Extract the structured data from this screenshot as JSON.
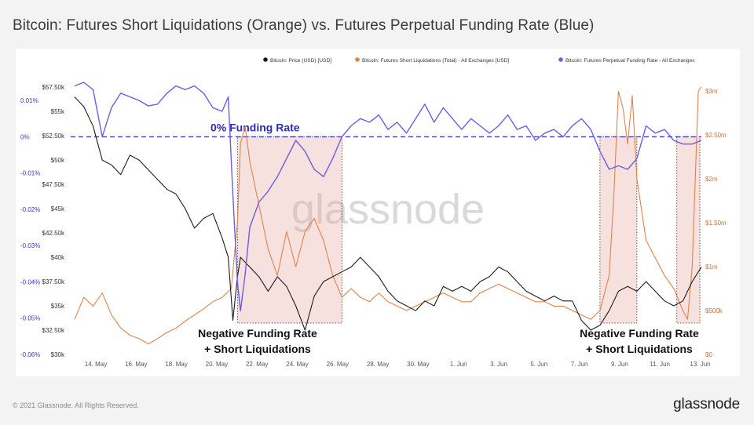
{
  "title": "Bitcoin: Futures Short Liquidations (Orange) vs. Futures Perpetual Funding Rate (Blue)",
  "footer": {
    "copyright": "© 2021 Glassnode. All Rights Reserved.",
    "brand": "glassnode"
  },
  "colors": {
    "price": "#1c1c1c",
    "liquidations": "#e0834b",
    "funding": "#6c5ce7",
    "zero_line": "#3b3fe0",
    "highlight": "#e8a8a0",
    "watermark": "#d9d9d9"
  },
  "chart_data": {
    "type": "line",
    "title": "Bitcoin: Futures Short Liquidations (Orange) vs. Futures Perpetual Funding Rate (Blue)",
    "x_range": [
      "2021-05-11",
      "2021-06-14"
    ],
    "x_ticks": [
      "14. May",
      "16. May",
      "18. May",
      "20. May",
      "22. May",
      "24. May",
      "26. May",
      "28. May",
      "30. May",
      "1. Jun",
      "3. Jun",
      "5. Jun",
      "7. Jun",
      "9. Jun",
      "11. Jun",
      "13. Jun"
    ],
    "y_left_price": {
      "ticks": [
        "$30k",
        "$32.50k",
        "$35k",
        "$37.50k",
        "$40k",
        "$42.50k",
        "$45k",
        "$47.50k",
        "$50k",
        "$52.50k",
        "$55k",
        "$57.50k"
      ],
      "range": [
        30000,
        58000
      ]
    },
    "y_left_funding": {
      "ticks": [
        "-0.06%",
        "-0.05%",
        "-0.04%",
        "-0.03%",
        "-0.02%",
        "-0.01%",
        "0%",
        "0.01%"
      ],
      "range": [
        -0.06,
        0.015
      ]
    },
    "y_right_liquidations": {
      "ticks": [
        "$0",
        "$500k",
        "$1m",
        "$1.50m",
        "$2m",
        "$2.50m",
        "$3m"
      ],
      "range": [
        0,
        3100000
      ]
    },
    "watermark": "glassnode",
    "zero_line_label": "0% Funding Rate",
    "annotations": [
      {
        "text_line1": "Negative Funding Rate",
        "text_line2": "+ Short Liquidations",
        "x_start": "2021-05-19T20:00",
        "x_end": "2021-05-25T12:00"
      },
      {
        "text_line1": "Negative Funding Rate",
        "text_line2": "+ Short Liquidations",
        "x_start": "2021-06-08T12:00",
        "x_end": "2021-06-10T12:00"
      },
      {
        "x_start": "2021-06-12T16:00",
        "x_end": "2021-06-13T22:00"
      }
    ],
    "series": [
      {
        "name": "Bitcoin: Price (USD) [USD]",
        "axis": "price",
        "points": [
          [
            "2021-05-11",
            56500
          ],
          [
            "2021-05-11T12:00",
            55500
          ],
          [
            "2021-05-12",
            53500
          ],
          [
            "2021-05-12T12:00",
            50000
          ],
          [
            "2021-05-13",
            49500
          ],
          [
            "2021-05-13T12:00",
            48500
          ],
          [
            "2021-05-14",
            50500
          ],
          [
            "2021-05-14T12:00",
            50000
          ],
          [
            "2021-05-15",
            49000
          ],
          [
            "2021-05-15T12:00",
            48000
          ],
          [
            "2021-05-16",
            47000
          ],
          [
            "2021-05-16T12:00",
            46500
          ],
          [
            "2021-05-17",
            45000
          ],
          [
            "2021-05-17T12:00",
            43000
          ],
          [
            "2021-05-18",
            44000
          ],
          [
            "2021-05-18T12:00",
            44500
          ],
          [
            "2021-05-19",
            42000
          ],
          [
            "2021-05-19T08:00",
            40000
          ],
          [
            "2021-05-19T14:00",
            33500
          ],
          [
            "2021-05-19T20:00",
            38000
          ],
          [
            "2021-05-20",
            40000
          ],
          [
            "2021-05-20T12:00",
            39000
          ],
          [
            "2021-05-21",
            38000
          ],
          [
            "2021-05-21T12:00",
            36500
          ],
          [
            "2021-05-22",
            38000
          ],
          [
            "2021-05-22T12:00",
            37000
          ],
          [
            "2021-05-23",
            35000
          ],
          [
            "2021-05-23T12:00",
            32500
          ],
          [
            "2021-05-24",
            36000
          ],
          [
            "2021-05-24T12:00",
            37500
          ],
          [
            "2021-05-25",
            38000
          ],
          [
            "2021-05-25T12:00",
            38500
          ],
          [
            "2021-05-26",
            39000
          ],
          [
            "2021-05-26T12:00",
            40000
          ],
          [
            "2021-05-27",
            39000
          ],
          [
            "2021-05-27T12:00",
            38000
          ],
          [
            "2021-05-28",
            36500
          ],
          [
            "2021-05-28T12:00",
            35500
          ],
          [
            "2021-05-29",
            35000
          ],
          [
            "2021-05-29T12:00",
            34500
          ],
          [
            "2021-05-30",
            35500
          ],
          [
            "2021-05-30T12:00",
            35000
          ],
          [
            "2021-05-31",
            37000
          ],
          [
            "2021-05-31T12:00",
            36500
          ],
          [
            "2021-06-01",
            37000
          ],
          [
            "2021-06-01T12:00",
            36500
          ],
          [
            "2021-06-02",
            37500
          ],
          [
            "2021-06-02T12:00",
            38000
          ],
          [
            "2021-06-03",
            39000
          ],
          [
            "2021-06-03T12:00",
            38500
          ],
          [
            "2021-06-04",
            37500
          ],
          [
            "2021-06-04T12:00",
            36500
          ],
          [
            "2021-06-05",
            36000
          ],
          [
            "2021-06-05T12:00",
            35500
          ],
          [
            "2021-06-06",
            36000
          ],
          [
            "2021-06-06T12:00",
            35500
          ],
          [
            "2021-06-07",
            35500
          ],
          [
            "2021-06-07T12:00",
            33500
          ],
          [
            "2021-06-08",
            32500
          ],
          [
            "2021-06-08T12:00",
            33000
          ],
          [
            "2021-06-09",
            34500
          ],
          [
            "2021-06-09T12:00",
            36500
          ],
          [
            "2021-06-10",
            37000
          ],
          [
            "2021-06-10T12:00",
            36500
          ],
          [
            "2021-06-11",
            37500
          ],
          [
            "2021-06-11T12:00",
            36500
          ],
          [
            "2021-06-12",
            35500
          ],
          [
            "2021-06-12T12:00",
            35000
          ],
          [
            "2021-06-13",
            35500
          ],
          [
            "2021-06-13T12:00",
            37500
          ],
          [
            "2021-06-14",
            39000
          ]
        ]
      },
      {
        "name": "Bitcoin: Futures Short Liquidations (Total) - All Exchanges [USD]",
        "axis": "liquidations",
        "points": [
          [
            "2021-05-11",
            400000
          ],
          [
            "2021-05-11T12:00",
            650000
          ],
          [
            "2021-05-12",
            550000
          ],
          [
            "2021-05-12T12:00",
            700000
          ],
          [
            "2021-05-13",
            450000
          ],
          [
            "2021-05-13T12:00",
            300000
          ],
          [
            "2021-05-14",
            220000
          ],
          [
            "2021-05-14T12:00",
            180000
          ],
          [
            "2021-05-15",
            120000
          ],
          [
            "2021-05-15T12:00",
            180000
          ],
          [
            "2021-05-16",
            250000
          ],
          [
            "2021-05-16T12:00",
            300000
          ],
          [
            "2021-05-17",
            380000
          ],
          [
            "2021-05-17T12:00",
            450000
          ],
          [
            "2021-05-18",
            520000
          ],
          [
            "2021-05-18T12:00",
            600000
          ],
          [
            "2021-05-19",
            650000
          ],
          [
            "2021-05-19T12:00",
            750000
          ],
          [
            "2021-05-19T20:00",
            1500000
          ],
          [
            "2021-05-20",
            2400000
          ],
          [
            "2021-05-20T06:00",
            2600000
          ],
          [
            "2021-05-20T12:00",
            2200000
          ],
          [
            "2021-05-21",
            1700000
          ],
          [
            "2021-05-21T12:00",
            1200000
          ],
          [
            "2021-05-22",
            900000
          ],
          [
            "2021-05-22T12:00",
            1400000
          ],
          [
            "2021-05-23",
            1000000
          ],
          [
            "2021-05-23T12:00",
            1400000
          ],
          [
            "2021-05-24",
            1550000
          ],
          [
            "2021-05-24T12:00",
            1300000
          ],
          [
            "2021-05-25",
            900000
          ],
          [
            "2021-05-25T12:00",
            650000
          ],
          [
            "2021-05-26",
            750000
          ],
          [
            "2021-05-26T12:00",
            650000
          ],
          [
            "2021-05-27",
            600000
          ],
          [
            "2021-05-27T12:00",
            700000
          ],
          [
            "2021-05-28",
            600000
          ],
          [
            "2021-05-28T12:00",
            550000
          ],
          [
            "2021-05-29",
            500000
          ],
          [
            "2021-05-29T12:00",
            550000
          ],
          [
            "2021-05-30",
            600000
          ],
          [
            "2021-05-30T12:00",
            650000
          ],
          [
            "2021-05-31",
            700000
          ],
          [
            "2021-05-31T12:00",
            650000
          ],
          [
            "2021-06-01",
            600000
          ],
          [
            "2021-06-01T12:00",
            600000
          ],
          [
            "2021-06-02",
            700000
          ],
          [
            "2021-06-02T12:00",
            750000
          ],
          [
            "2021-06-03",
            800000
          ],
          [
            "2021-06-03T12:00",
            750000
          ],
          [
            "2021-06-04",
            700000
          ],
          [
            "2021-06-04T12:00",
            650000
          ],
          [
            "2021-06-05",
            600000
          ],
          [
            "2021-06-05T12:00",
            600000
          ],
          [
            "2021-06-06",
            550000
          ],
          [
            "2021-06-06T12:00",
            550000
          ],
          [
            "2021-06-07",
            500000
          ],
          [
            "2021-06-07T12:00",
            450000
          ],
          [
            "2021-06-08",
            400000
          ],
          [
            "2021-06-08T12:00",
            500000
          ],
          [
            "2021-06-09",
            900000
          ],
          [
            "2021-06-09T06:00",
            1800000
          ],
          [
            "2021-06-09T12:00",
            3000000
          ],
          [
            "2021-06-09T18:00",
            2800000
          ],
          [
            "2021-06-10",
            2400000
          ],
          [
            "2021-06-10T06:00",
            2950000
          ],
          [
            "2021-06-10T12:00",
            2000000
          ],
          [
            "2021-06-11",
            1300000
          ],
          [
            "2021-06-11T12:00",
            1100000
          ],
          [
            "2021-06-12",
            900000
          ],
          [
            "2021-06-12T12:00",
            750000
          ],
          [
            "2021-06-13",
            500000
          ],
          [
            "2021-06-13T06:00",
            400000
          ],
          [
            "2021-06-13T12:00",
            1000000
          ],
          [
            "2021-06-13T20:00",
            3000000
          ],
          [
            "2021-06-14",
            3050000
          ]
        ]
      },
      {
        "name": "Bitcoin: Futures Perpetual Funding Rate - All Exchanges",
        "axis": "funding",
        "points": [
          [
            "2021-05-11",
            0.014
          ],
          [
            "2021-05-11T12:00",
            0.015
          ],
          [
            "2021-05-12",
            0.013
          ],
          [
            "2021-05-12T12:00",
            0.0
          ],
          [
            "2021-05-13",
            0.008
          ],
          [
            "2021-05-13T12:00",
            0.012
          ],
          [
            "2021-05-14",
            0.011
          ],
          [
            "2021-05-14T12:00",
            0.01
          ],
          [
            "2021-05-15",
            0.0085
          ],
          [
            "2021-05-15T12:00",
            0.009
          ],
          [
            "2021-05-16",
            0.012
          ],
          [
            "2021-05-16T12:00",
            0.014
          ],
          [
            "2021-05-17",
            0.013
          ],
          [
            "2021-05-17T12:00",
            0.014
          ],
          [
            "2021-05-18",
            0.012
          ],
          [
            "2021-05-18T12:00",
            0.008
          ],
          [
            "2021-05-19",
            0.007
          ],
          [
            "2021-05-19T08:00",
            0.011
          ],
          [
            "2021-05-19T14:00",
            -0.016
          ],
          [
            "2021-05-19T20:00",
            -0.04
          ],
          [
            "2021-05-20",
            -0.048
          ],
          [
            "2021-05-20T06:00",
            -0.038
          ],
          [
            "2021-05-20T12:00",
            -0.025
          ],
          [
            "2021-05-21",
            -0.018
          ],
          [
            "2021-05-21T12:00",
            -0.015
          ],
          [
            "2021-05-22",
            -0.011
          ],
          [
            "2021-05-22T12:00",
            -0.006
          ],
          [
            "2021-05-23",
            -0.001
          ],
          [
            "2021-05-23T12:00",
            -0.004
          ],
          [
            "2021-05-24",
            -0.009
          ],
          [
            "2021-05-24T12:00",
            -0.011
          ],
          [
            "2021-05-25",
            -0.006
          ],
          [
            "2021-05-25T12:00",
            0.0
          ],
          [
            "2021-05-26",
            0.003
          ],
          [
            "2021-05-26T12:00",
            0.005
          ],
          [
            "2021-05-27",
            0.004
          ],
          [
            "2021-05-27T12:00",
            0.006
          ],
          [
            "2021-05-28",
            0.002
          ],
          [
            "2021-05-28T12:00",
            0.004
          ],
          [
            "2021-05-29",
            0.001
          ],
          [
            "2021-05-29T12:00",
            0.005
          ],
          [
            "2021-05-30",
            0.009
          ],
          [
            "2021-05-30T12:00",
            0.004
          ],
          [
            "2021-05-31",
            0.008
          ],
          [
            "2021-05-31T12:00",
            0.005
          ],
          [
            "2021-06-01",
            0.002
          ],
          [
            "2021-06-01T12:00",
            0.005
          ],
          [
            "2021-06-02",
            0.003
          ],
          [
            "2021-06-02T12:00",
            0.001
          ],
          [
            "2021-06-03",
            0.003
          ],
          [
            "2021-06-03T12:00",
            0.006
          ],
          [
            "2021-06-04",
            0.002
          ],
          [
            "2021-06-04T12:00",
            0.003
          ],
          [
            "2021-06-05",
            -0.001
          ],
          [
            "2021-06-05T12:00",
            0.001
          ],
          [
            "2021-06-06",
            0.002
          ],
          [
            "2021-06-06T12:00",
            0.0
          ],
          [
            "2021-06-07",
            0.003
          ],
          [
            "2021-06-07T12:00",
            0.005
          ],
          [
            "2021-06-08",
            0.002
          ],
          [
            "2021-06-08T12:00",
            -0.004
          ],
          [
            "2021-06-09",
            -0.009
          ],
          [
            "2021-06-09T12:00",
            -0.008
          ],
          [
            "2021-06-10",
            -0.009
          ],
          [
            "2021-06-10T12:00",
            -0.006
          ],
          [
            "2021-06-11",
            0.003
          ],
          [
            "2021-06-11T12:00",
            0.001
          ],
          [
            "2021-06-12",
            0.002
          ],
          [
            "2021-06-12T12:00",
            -0.001
          ],
          [
            "2021-06-13",
            -0.002
          ],
          [
            "2021-06-13T12:00",
            -0.002
          ],
          [
            "2021-06-14",
            -0.001
          ]
        ]
      }
    ]
  }
}
